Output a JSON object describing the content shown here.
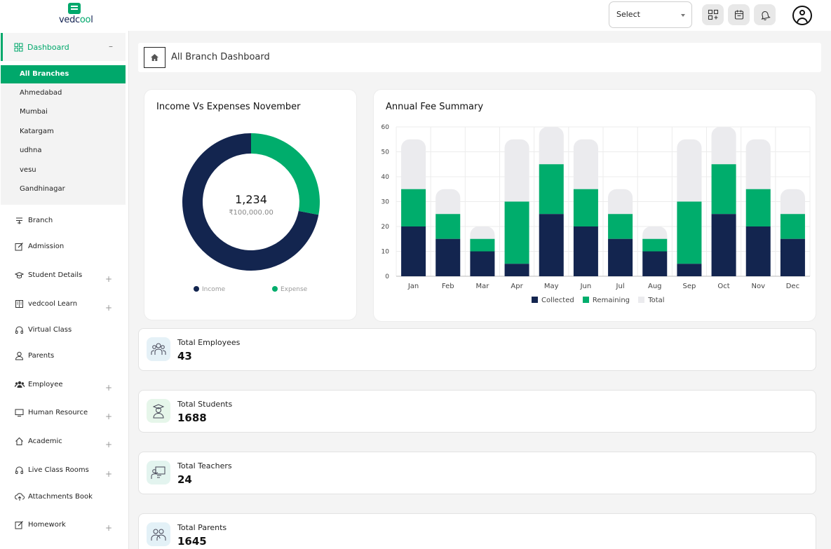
{
  "brand": {
    "name_prefix": "vedc",
    "name_accent": "oo",
    "name_suffix": "l"
  },
  "header": {
    "select_value": "Select",
    "icons": [
      "apps-add-icon",
      "calendar-icon",
      "bell-icon",
      "user-circle-icon"
    ]
  },
  "sidebar": {
    "dashboard_label": "Dashboard",
    "branches": [
      {
        "label": "All Branches",
        "active": true
      },
      {
        "label": "Ahmedabad"
      },
      {
        "label": "Mumbai"
      },
      {
        "label": "Katargam"
      },
      {
        "label": "udhna"
      },
      {
        "label": "vesu"
      },
      {
        "label": "Gandhinagar"
      }
    ],
    "items": [
      {
        "label": "Branch",
        "icon": "branch-icon",
        "expandable": false
      },
      {
        "label": "Admission",
        "icon": "edit-icon",
        "expandable": true
      },
      {
        "label": "Student Details",
        "icon": "graduation-cap-icon",
        "expandable": true
      },
      {
        "label": "vedcool Learn",
        "icon": "book-icon",
        "expandable": false
      },
      {
        "label": "Virtual Class",
        "icon": "headset-icon",
        "expandable": false
      },
      {
        "label": "Parents",
        "icon": "user-icon",
        "expandable": true
      },
      {
        "label": "Employee",
        "icon": "users-icon",
        "expandable": true
      },
      {
        "label": "Human Resource",
        "icon": "monitor-icon",
        "expandable": true
      },
      {
        "label": "Academic",
        "icon": "home-icon",
        "expandable": true
      },
      {
        "label": "Live Class Rooms",
        "icon": "headset-icon",
        "expandable": false
      },
      {
        "label": "Attachments Book",
        "icon": "cloud-upload-icon",
        "expandable": true
      },
      {
        "label": "Homework",
        "icon": "edit-icon",
        "expandable": true
      }
    ]
  },
  "breadcrumb": {
    "title": "All Branch Dashboard"
  },
  "income_card": {
    "title": "Income Vs Expenses November",
    "center_value": "1,234",
    "center_sub": "₹100,000.00",
    "legend": [
      {
        "label": "Income",
        "color": "#13254f"
      },
      {
        "label": "Expense",
        "color": "#00ad6c"
      }
    ]
  },
  "fee_card": {
    "title": "Annual Fee Summary",
    "legend": [
      {
        "label": "Collected",
        "color": "#13254f"
      },
      {
        "label": "Remaining",
        "color": "#00ad6c"
      },
      {
        "label": "Total",
        "color": "#ebebee"
      }
    ]
  },
  "chart_data": [
    {
      "type": "pie",
      "title": "Income Vs Expenses November",
      "labels": [
        "Income",
        "Expense"
      ],
      "values": [
        72,
        28
      ],
      "colors": [
        "#13254f",
        "#00ad6c"
      ],
      "center_text": "1,234",
      "center_subtext": "₹100,000.00",
      "legend": "bottom"
    },
    {
      "type": "bar",
      "title": "Annual Fee Summary",
      "categories": [
        "Jan",
        "Feb",
        "Mar",
        "Apr",
        "May",
        "Jun",
        "Jul",
        "Aug",
        "Sep",
        "Oct",
        "Nov",
        "Dec"
      ],
      "series": [
        {
          "name": "Collected",
          "values": [
            20,
            15,
            10,
            5,
            25,
            20,
            15,
            10,
            5,
            25,
            20,
            15
          ]
        },
        {
          "name": "Remaining",
          "values": [
            15,
            10,
            5,
            25,
            20,
            15,
            10,
            5,
            25,
            20,
            15,
            10
          ]
        },
        {
          "name": "Total",
          "values": [
            55,
            35,
            20,
            55,
            60,
            55,
            35,
            20,
            55,
            60,
            55,
            35
          ]
        }
      ],
      "stacked": true,
      "ylim": [
        0,
        60
      ],
      "yticks": [
        0,
        10,
        20,
        30,
        40,
        50,
        60
      ],
      "grid": true,
      "legend": "bottom"
    }
  ],
  "stats": [
    {
      "label": "Total Employees",
      "value": "43",
      "icon": "employees-icon",
      "bg": "#e5f1f7"
    },
    {
      "label": "Total Students",
      "value": "1688",
      "icon": "student-icon",
      "bg": "#e6f6ea"
    },
    {
      "label": "Total Teachers",
      "value": "24",
      "icon": "teacher-icon",
      "bg": "#e3f4ef"
    },
    {
      "label": "Total Parents",
      "value": "1645",
      "icon": "parents-icon",
      "bg": "#e3f1f7"
    }
  ]
}
